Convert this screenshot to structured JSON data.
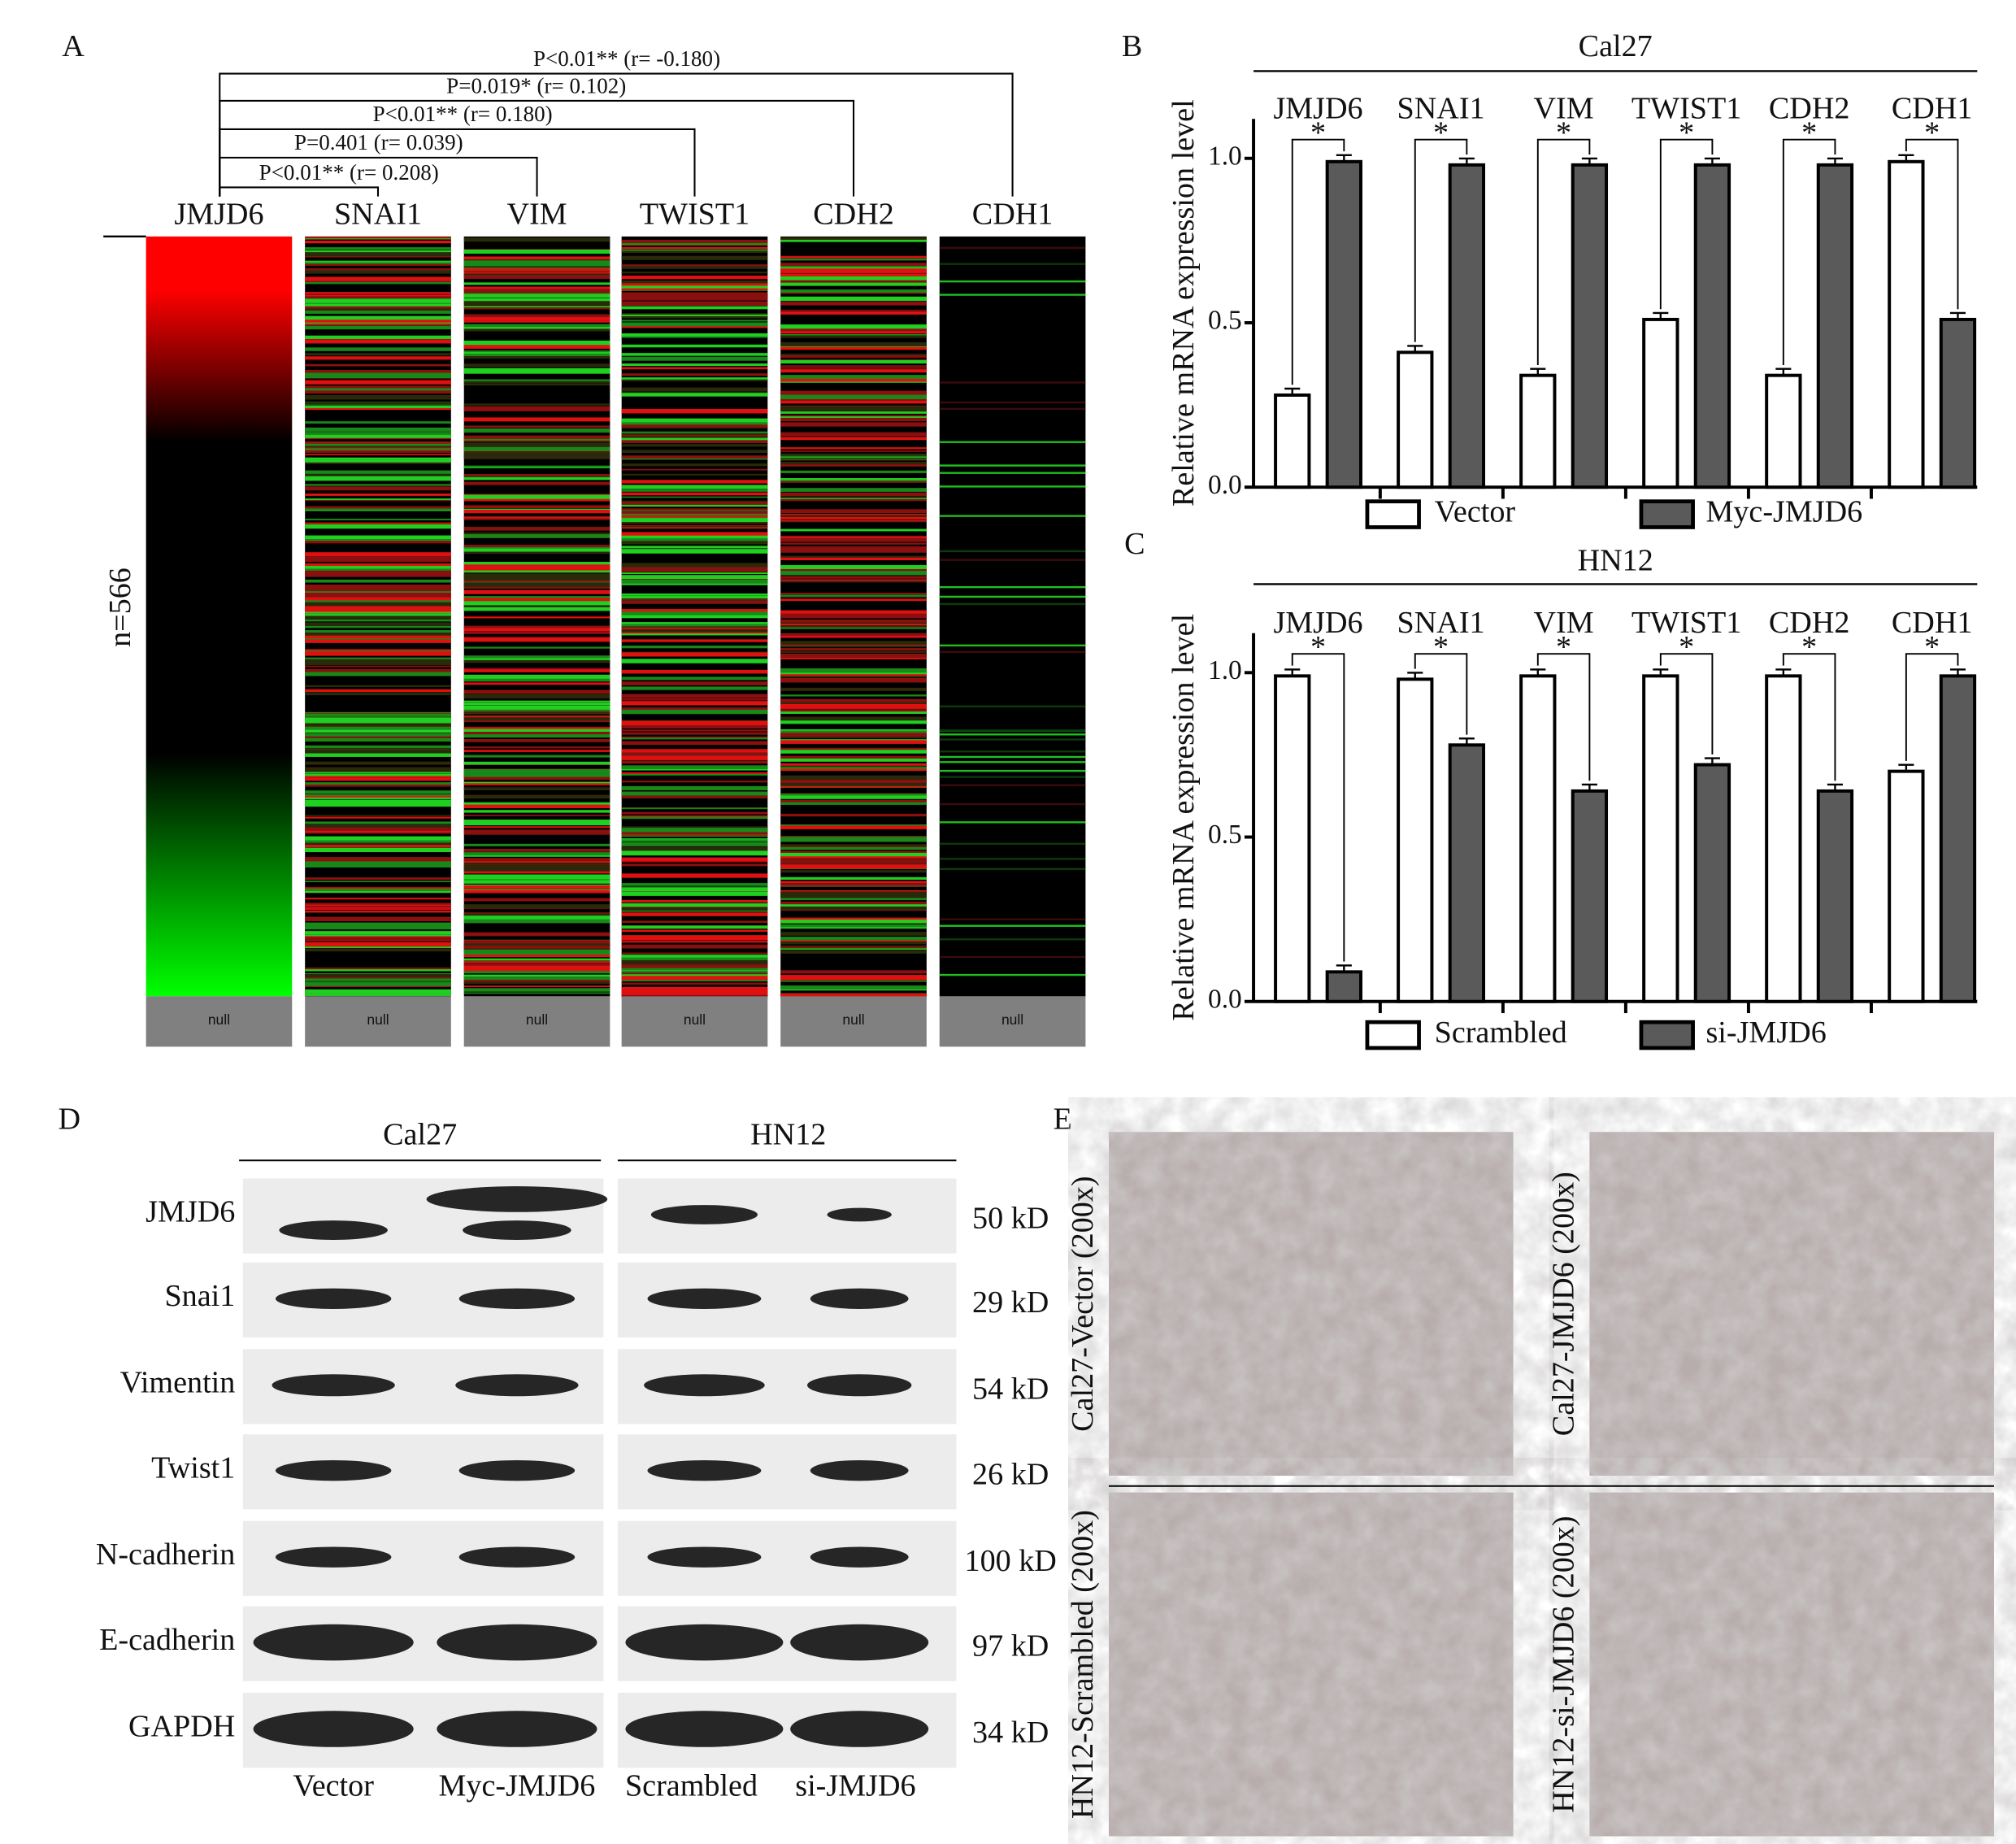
{
  "panel_letters": [
    "A",
    "B",
    "C",
    "D",
    "E"
  ],
  "heatmap": {
    "genes": [
      "JMJD6",
      "SNAI1",
      "VIM",
      "TWIST1",
      "CDH2",
      "CDH1"
    ],
    "sample_label": "n=566",
    "null_label": "null",
    "correlations": [
      "P<0.01** (r= 0.208)",
      "P=0.401 (r= 0.039)",
      "P<0.01** (r= 0.180)",
      "P=0.019* (r= 0.102)",
      "P<0.01** (r= -0.180)"
    ]
  },
  "chart_data": [
    {
      "type": "bar",
      "title": "Cal27",
      "ylabel": "Relative mRNA expression level",
      "categories": [
        "JMJD6",
        "SNAI1",
        "VIM",
        "TWIST1",
        "CDH2",
        "CDH1"
      ],
      "series": [
        {
          "name": "Vector",
          "color": "#ffffff",
          "values": [
            0.28,
            0.41,
            0.34,
            0.51,
            0.34,
            0.99
          ]
        },
        {
          "name": "Myc-JMJD6",
          "color": "#5a5a5a",
          "values": [
            0.99,
            0.98,
            0.98,
            0.98,
            0.98,
            0.51
          ]
        }
      ],
      "annotations": [
        "*",
        "*",
        "*",
        "*",
        "*",
        "*"
      ],
      "ylim": [
        0,
        1.12
      ],
      "yticks": [
        {
          "value": 0,
          "label": "0.0"
        },
        {
          "value": 0.5,
          "label": "0.5"
        },
        {
          "value": 1,
          "label": "1.0"
        }
      ]
    },
    {
      "type": "bar",
      "title": "HN12",
      "ylabel": "Relative mRNA expression level",
      "categories": [
        "JMJD6",
        "SNAI1",
        "VIM",
        "TWIST1",
        "CDH2",
        "CDH1"
      ],
      "series": [
        {
          "name": "Scrambled",
          "color": "#ffffff",
          "values": [
            0.99,
            0.98,
            0.99,
            0.99,
            0.99,
            0.7
          ]
        },
        {
          "name": "si-JMJD6",
          "color": "#5a5a5a",
          "values": [
            0.09,
            0.78,
            0.64,
            0.72,
            0.64,
            0.99
          ]
        }
      ],
      "annotations": [
        "*",
        "*",
        "*",
        "*",
        "*",
        "*"
      ],
      "ylim": [
        0,
        1.12
      ],
      "yticks": [
        {
          "value": 0,
          "label": "0.0"
        },
        {
          "value": 0.5,
          "label": "0.5"
        },
        {
          "value": 1,
          "label": "1.0"
        }
      ]
    }
  ],
  "western_blot": {
    "cell_lines": [
      "Cal27",
      "HN12"
    ],
    "proteins": [
      "JMJD6",
      "Snai1",
      "Vimentin",
      "Twist1",
      "N-cadherin",
      "E-cadherin",
      "GAPDH"
    ],
    "sizes": [
      "50 kD",
      "29 kD",
      "54 kD",
      "26 kD",
      "100 kD",
      "97 kD",
      "34 kD"
    ],
    "lanes": [
      "Vector",
      "Myc-JMJD6",
      "Scrambled",
      "si-JMJD6"
    ]
  },
  "micrographs": [
    "Cal27-Vector (200x)",
    "Cal27-JMJD6 (200x)",
    "HN12-Scrambled (200x)",
    "HN12-si-JMJD6 (200x)"
  ]
}
